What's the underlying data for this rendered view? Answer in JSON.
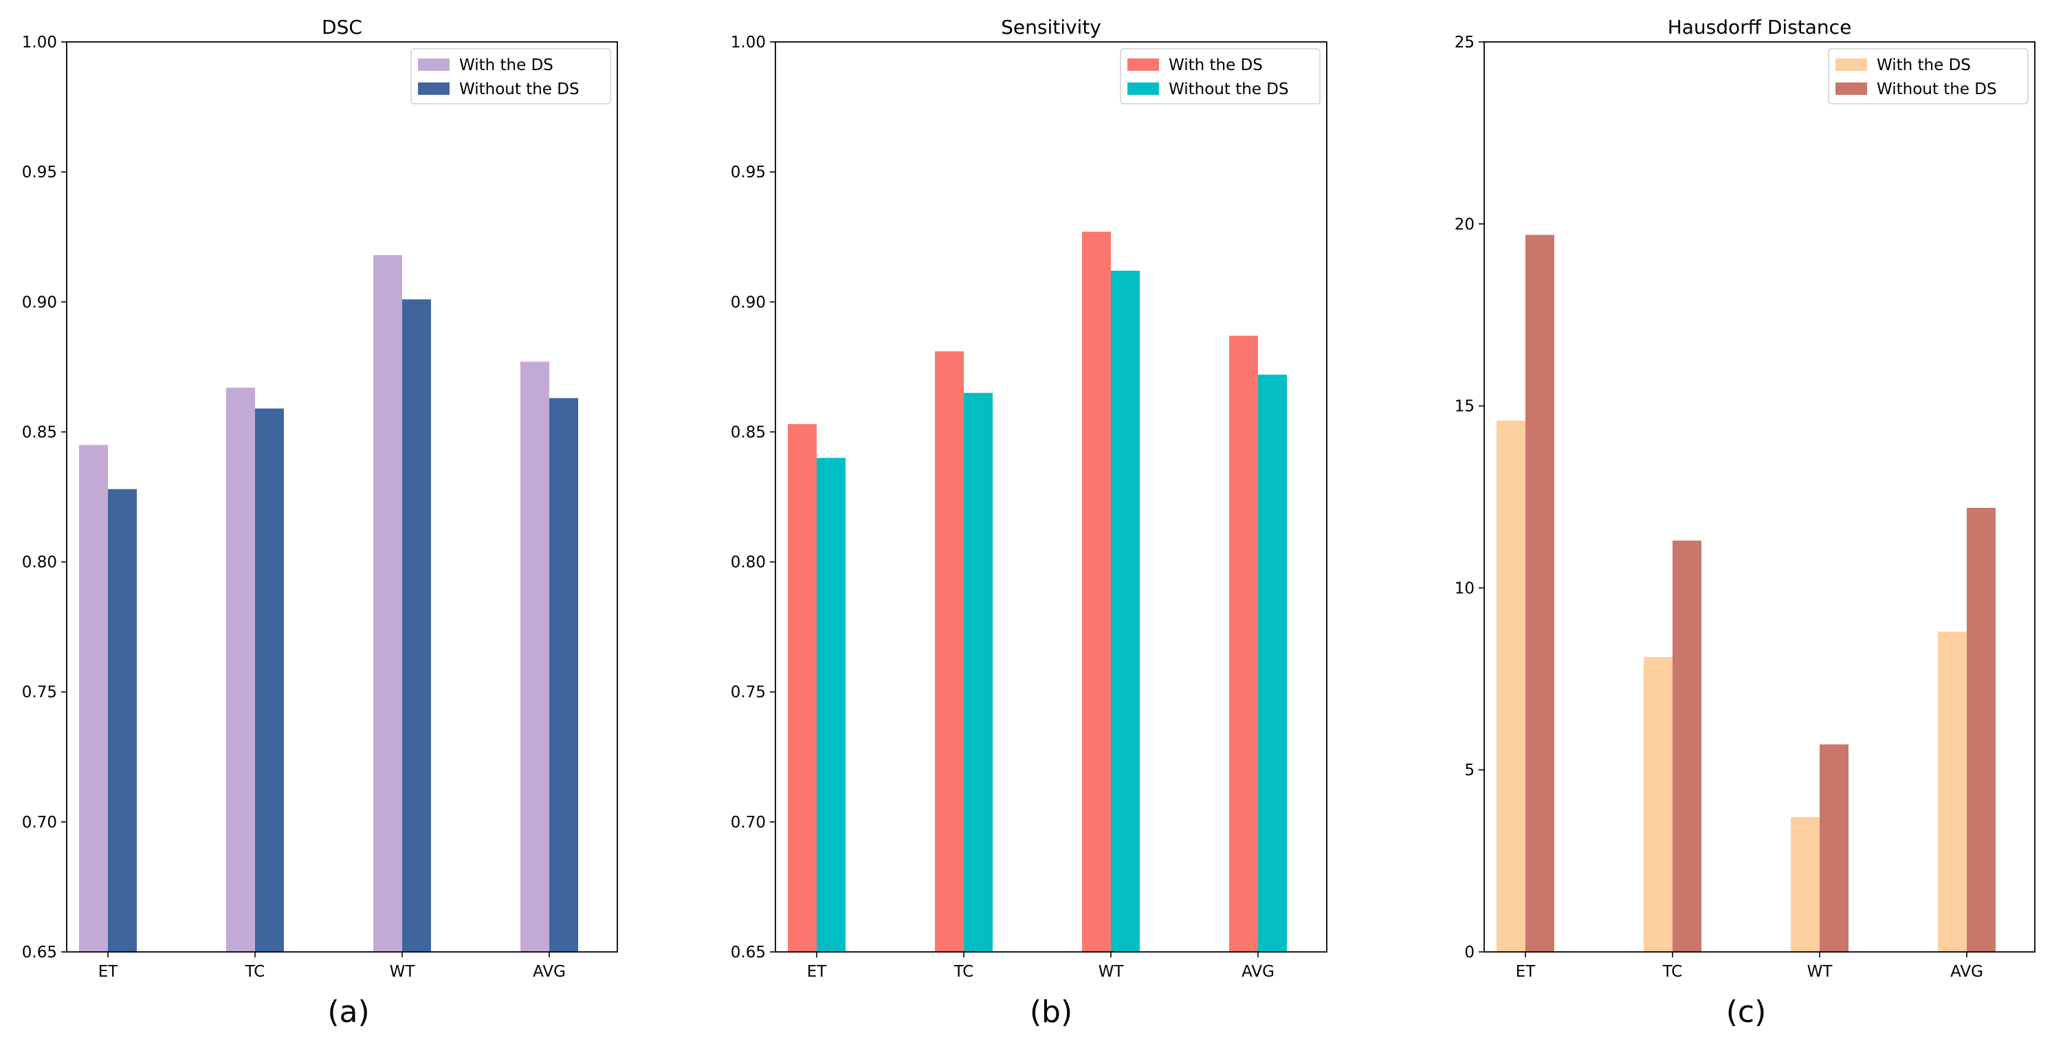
{
  "chart_data": [
    {
      "type": "bar",
      "title": "DSC",
      "caption": "(a)",
      "categories": [
        "ET",
        "TC",
        "WT",
        "AVG"
      ],
      "ylim": [
        0.65,
        1.0
      ],
      "yticks": [
        "0.65",
        "0.70",
        "0.75",
        "0.80",
        "0.85",
        "0.90",
        "0.95",
        "1.00"
      ],
      "xlabel": "",
      "ylabel": "",
      "grid": false,
      "legend_position": "top-right",
      "series": [
        {
          "name": "With the DS",
          "color": "#c3aad6",
          "values": [
            0.845,
            0.867,
            0.918,
            0.877
          ]
        },
        {
          "name": "Without the DS",
          "color": "#3f659e",
          "values": [
            0.828,
            0.859,
            0.901,
            0.863
          ]
        }
      ]
    },
    {
      "type": "bar",
      "title": "Sensitivity",
      "caption": "(b)",
      "categories": [
        "ET",
        "TC",
        "WT",
        "AVG"
      ],
      "ylim": [
        0.65,
        1.0
      ],
      "yticks": [
        "0.65",
        "0.70",
        "0.75",
        "0.80",
        "0.85",
        "0.90",
        "0.95",
        "1.00"
      ],
      "xlabel": "",
      "ylabel": "",
      "grid": false,
      "legend_position": "top-right",
      "series": [
        {
          "name": "With the DS",
          "color": "#fd766e",
          "values": [
            0.853,
            0.881,
            0.927,
            0.887
          ]
        },
        {
          "name": "Without the DS",
          "color": "#00bec4",
          "values": [
            0.84,
            0.865,
            0.912,
            0.872
          ]
        }
      ]
    },
    {
      "type": "bar",
      "title": "Hausdorff Distance",
      "caption": "(c)",
      "categories": [
        "ET",
        "TC",
        "WT",
        "AVG"
      ],
      "ylim": [
        0,
        25
      ],
      "yticks": [
        "0",
        "5",
        "10",
        "15",
        "20",
        "25"
      ],
      "xlabel": "",
      "ylabel": "",
      "grid": false,
      "legend_position": "top-right",
      "series": [
        {
          "name": "With the DS",
          "color": "#fdcf9e",
          "values": [
            14.6,
            8.1,
            3.7,
            8.8
          ]
        },
        {
          "name": "Without the DS",
          "color": "#c8776a",
          "values": [
            19.7,
            11.3,
            5.7,
            12.2
          ]
        }
      ]
    }
  ]
}
